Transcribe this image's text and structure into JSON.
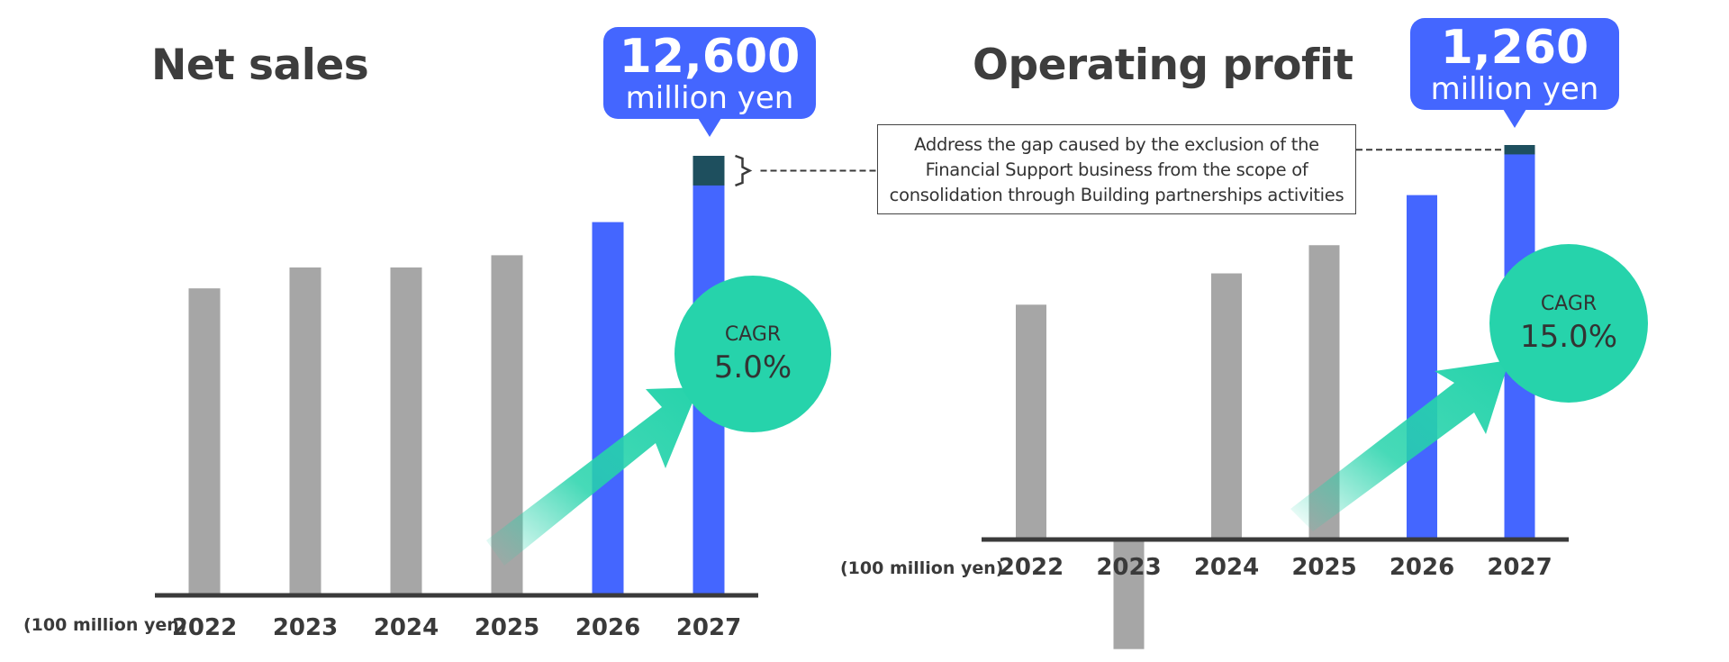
{
  "chart_data": [
    {
      "type": "bar",
      "title": "Net sales",
      "unit_label": "(100 million yen)",
      "categories": [
        "2022",
        "2023",
        "2024",
        "2025",
        "2026",
        "2027"
      ],
      "values": [
        88,
        94,
        94,
        97.5,
        107,
        126
      ],
      "gap_segment": {
        "category": "2027",
        "value": 8.5
      },
      "ylim": [
        0,
        126
      ],
      "highlight": {
        "value": "12,600",
        "unit": "million yen"
      },
      "cagr": {
        "label": "CAGR",
        "value": "5.0%"
      },
      "colors": {
        "actual": "#a6a6a6",
        "plan": "#4466ff",
        "gap": "#1e4f5e",
        "cagr": "#26d3ab"
      }
    },
    {
      "type": "bar",
      "title": "Operating profit",
      "unit_label": "(100 million yen)",
      "categories": [
        "2022",
        "2023",
        "2024",
        "2025",
        "2026",
        "2027"
      ],
      "values": [
        7.5,
        -3.5,
        8.5,
        9.4,
        11,
        12.6
      ],
      "gap_segment": {
        "category": "2027",
        "value": 0.3
      },
      "ylim": [
        -3.5,
        12.6
      ],
      "highlight": {
        "value": "1,260",
        "unit": "million yen"
      },
      "cagr": {
        "label": "CAGR",
        "value": "15.0%"
      },
      "colors": {
        "actual": "#a6a6a6",
        "plan": "#4466ff",
        "gap": "#1e4f5e",
        "cagr": "#26d3ab"
      }
    }
  ],
  "note": "Address the gap caused by the exclusion of the Financial Support business from the scope of consolidation through Building partnerships activities"
}
